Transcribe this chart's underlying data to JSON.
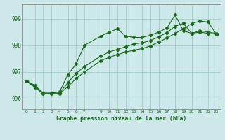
{
  "title": "Graphe pression niveau de la mer (hPa)",
  "bg_color": "#cce8e8",
  "grid_color": "#aacfcf",
  "line_color": "#1a6b1a",
  "xlim": [
    -0.5,
    23.5
  ],
  "ylim": [
    995.6,
    999.55
  ],
  "yticks": [
    996,
    997,
    998,
    999
  ],
  "xticks": [
    0,
    1,
    2,
    3,
    4,
    5,
    6,
    7,
    9,
    10,
    11,
    12,
    13,
    14,
    15,
    16,
    17,
    18,
    19,
    20,
    21,
    22,
    23
  ],
  "xtick_labels": [
    "0",
    "1",
    "2",
    "3",
    "4",
    "5",
    "6",
    "7",
    "9",
    "10",
    "11",
    "12",
    "13",
    "14",
    "15",
    "16",
    "17",
    "18",
    "19",
    "20",
    "21",
    "22",
    "23"
  ],
  "series": [
    {
      "x": [
        0,
        1,
        2,
        3,
        4,
        5,
        6,
        7,
        9,
        10,
        11,
        12,
        13,
        14,
        15,
        16,
        17,
        18,
        19,
        20,
        21,
        22,
        23
      ],
      "y": [
        996.65,
        996.5,
        996.2,
        996.2,
        996.25,
        996.9,
        997.3,
        998.0,
        998.35,
        998.5,
        998.62,
        998.35,
        998.3,
        998.3,
        998.38,
        998.5,
        998.65,
        999.15,
        998.55,
        998.45,
        998.55,
        998.5,
        998.45
      ]
    },
    {
      "x": [
        0,
        1,
        2,
        3,
        4,
        5,
        6,
        7,
        9,
        10,
        11,
        12,
        13,
        14,
        15,
        16,
        17,
        18,
        19,
        20,
        21,
        22,
        23
      ],
      "y": [
        996.65,
        996.45,
        996.2,
        996.2,
        996.2,
        996.6,
        996.95,
        997.2,
        997.6,
        997.75,
        997.85,
        997.95,
        998.05,
        998.1,
        998.18,
        998.32,
        998.48,
        998.72,
        998.83,
        998.45,
        998.5,
        998.45,
        998.42
      ]
    },
    {
      "x": [
        0,
        1,
        2,
        3,
        4,
        5,
        6,
        7,
        9,
        10,
        11,
        12,
        13,
        14,
        15,
        16,
        17,
        18,
        19,
        20,
        21,
        22,
        23
      ],
      "y": [
        996.65,
        996.42,
        996.18,
        996.18,
        996.18,
        996.45,
        996.75,
        997.0,
        997.42,
        997.55,
        997.65,
        997.75,
        997.82,
        997.88,
        997.98,
        998.12,
        998.28,
        998.45,
        998.62,
        998.82,
        998.92,
        998.88,
        998.42
      ]
    }
  ]
}
